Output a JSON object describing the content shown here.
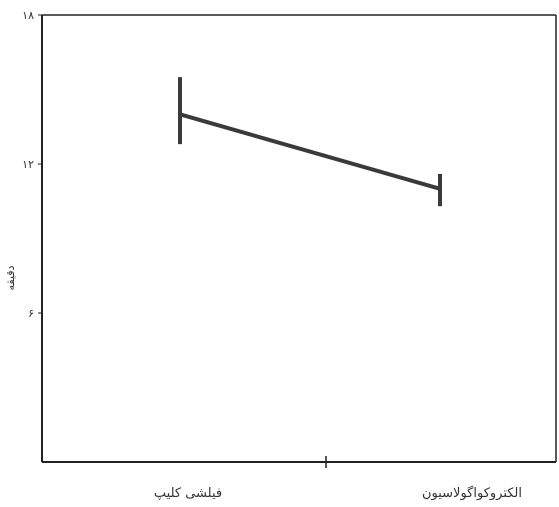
{
  "chart_data": {
    "type": "line",
    "categories": [
      "فیلشی کلیپ",
      "الکتروکواگولاسیون"
    ],
    "values": [
      14.0,
      11.0
    ],
    "error_low": [
      12.8,
      10.3
    ],
    "error_high": [
      15.5,
      11.6
    ],
    "ylabel": "دقیقه",
    "yticks": [
      "۶",
      "۱۲",
      "۱۸"
    ],
    "ytick_values": [
      6,
      12,
      18
    ],
    "ylim": [
      0,
      18
    ],
    "grid": false,
    "colors": {
      "line": "#3a3a3a",
      "axis": "#222222"
    }
  }
}
